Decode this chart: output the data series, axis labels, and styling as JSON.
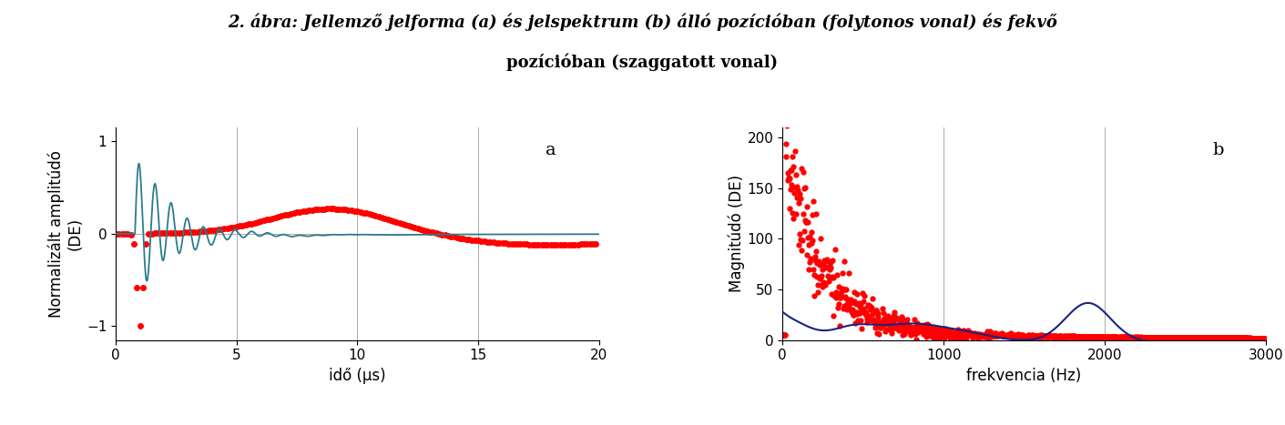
{
  "title_line1": "2. ábra: Jellemző jelforma (a) és jelspektrum (b) álló pozícióban (folytonos vonal) és fekvő",
  "title_line2": "pozícióban (szaggatott vonal)",
  "plot_a_xlabel": "idő (μs)",
  "plot_a_ylabel": "Normalizált amplitúdó\n(DE)",
  "plot_a_label": "a",
  "plot_a_xlim": [
    0,
    20
  ],
  "plot_a_ylim": [
    -1.15,
    1.15
  ],
  "plot_a_xticks": [
    0,
    5,
    10,
    15,
    20
  ],
  "plot_a_yticks": [
    -1,
    0,
    1
  ],
  "plot_b_xlabel": "frekvencia (Hz)",
  "plot_b_ylabel": "Magnitúdó (DE)",
  "plot_b_label": "b",
  "plot_b_xlim": [
    0,
    3000
  ],
  "plot_b_ylim": [
    0,
    210
  ],
  "plot_b_xticks": [
    0,
    1000,
    2000,
    3000
  ],
  "plot_b_yticks": [
    0,
    50,
    100,
    150,
    200
  ],
  "solid_color_a": "#2d7b8c",
  "solid_color_b": "#1a237e",
  "dotted_color": "#ff0000",
  "background_color": "#ffffff",
  "title_fontsize": 13,
  "label_fontsize": 12,
  "tick_fontsize": 11
}
